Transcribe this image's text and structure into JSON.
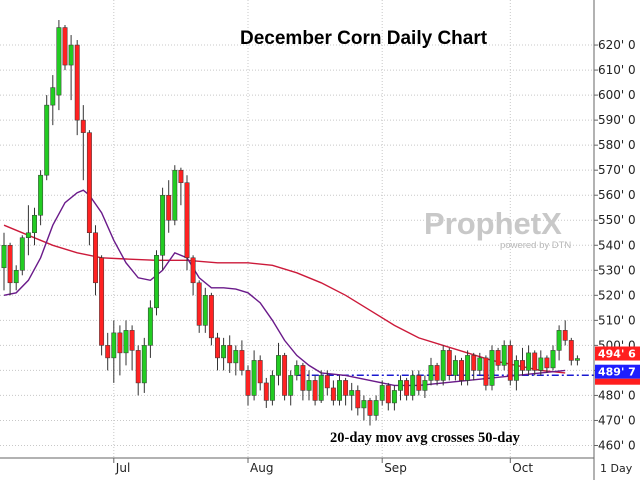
{
  "chart_data": {
    "type": "candlestick",
    "title": "December Corn Daily Chart",
    "annotation": "20-day mov avg crosses 50-day",
    "watermark": {
      "brand": "ProphetX",
      "tagline": "powered by DTN"
    },
    "period": "1 Day",
    "y_ticks": [
      "460' 0",
      "470' 0",
      "480' 0",
      "490' 0",
      "500' 0",
      "510' 0",
      "520' 0",
      "530' 0",
      "540' 0",
      "550' 0",
      "560' 0",
      "570' 0",
      "580' 0",
      "590' 0",
      "600' 0",
      "610' 0",
      "620' 0"
    ],
    "y_tick_values": [
      460,
      470,
      480,
      490,
      500,
      510,
      520,
      530,
      540,
      550,
      560,
      570,
      580,
      590,
      600,
      610,
      620
    ],
    "ylim": [
      455,
      638
    ],
    "x_ticks": [
      {
        "label": "Jul",
        "index": 18
      },
      {
        "label": "Aug",
        "index": 40
      },
      {
        "label": "Sep",
        "index": 62
      },
      {
        "label": "Oct",
        "index": 83
      }
    ],
    "last_price": {
      "label": "494' 6",
      "value": 494.75,
      "color": "#ff1e1e"
    },
    "crossover_level": {
      "label": "489' 7",
      "value": 489.875,
      "color": "#1e1eff"
    },
    "colors": {
      "up": "#22cc22",
      "down": "#ff2222",
      "ma50": "#cc1a3a",
      "ma20": "#6a1a8a",
      "dashed": "#1a1ad0",
      "grid": "#c8c8c8"
    },
    "candles": [
      {
        "o": 531,
        "h": 545,
        "l": 522,
        "c": 540
      },
      {
        "o": 540,
        "h": 541,
        "l": 520,
        "c": 525
      },
      {
        "o": 525,
        "h": 532,
        "l": 522,
        "c": 530
      },
      {
        "o": 530,
        "h": 544,
        "l": 528,
        "c": 543
      },
      {
        "o": 543,
        "h": 556,
        "l": 536,
        "c": 545
      },
      {
        "o": 545,
        "h": 555,
        "l": 540,
        "c": 552
      },
      {
        "o": 552,
        "h": 570,
        "l": 548,
        "c": 568
      },
      {
        "o": 568,
        "h": 600,
        "l": 566,
        "c": 596
      },
      {
        "o": 596,
        "h": 608,
        "l": 588,
        "c": 603
      },
      {
        "o": 600,
        "h": 630,
        "l": 594,
        "c": 627
      },
      {
        "o": 627,
        "h": 628,
        "l": 610,
        "c": 612
      },
      {
        "o": 612,
        "h": 624,
        "l": 598,
        "c": 620
      },
      {
        "o": 620,
        "h": 622,
        "l": 584,
        "c": 590
      },
      {
        "o": 590,
        "h": 596,
        "l": 566,
        "c": 585
      },
      {
        "o": 585,
        "h": 586,
        "l": 540,
        "c": 545
      },
      {
        "o": 545,
        "h": 548,
        "l": 520,
        "c": 525
      },
      {
        "o": 535,
        "h": 536,
        "l": 496,
        "c": 500
      },
      {
        "o": 500,
        "h": 505,
        "l": 490,
        "c": 495
      },
      {
        "o": 495,
        "h": 510,
        "l": 485,
        "c": 505
      },
      {
        "o": 505,
        "h": 508,
        "l": 488,
        "c": 497
      },
      {
        "o": 497,
        "h": 510,
        "l": 492,
        "c": 506
      },
      {
        "o": 506,
        "h": 508,
        "l": 490,
        "c": 498
      },
      {
        "o": 498,
        "h": 500,
        "l": 480,
        "c": 485
      },
      {
        "o": 485,
        "h": 503,
        "l": 481,
        "c": 500
      },
      {
        "o": 500,
        "h": 518,
        "l": 495,
        "c": 515
      },
      {
        "o": 515,
        "h": 538,
        "l": 512,
        "c": 536
      },
      {
        "o": 536,
        "h": 563,
        "l": 530,
        "c": 560
      },
      {
        "o": 560,
        "h": 566,
        "l": 545,
        "c": 550
      },
      {
        "o": 550,
        "h": 572,
        "l": 548,
        "c": 570
      },
      {
        "o": 570,
        "h": 571,
        "l": 556,
        "c": 565
      },
      {
        "o": 565,
        "h": 568,
        "l": 530,
        "c": 535
      },
      {
        "o": 535,
        "h": 536,
        "l": 520,
        "c": 525
      },
      {
        "o": 525,
        "h": 526,
        "l": 505,
        "c": 508
      },
      {
        "o": 508,
        "h": 523,
        "l": 505,
        "c": 520
      },
      {
        "o": 520,
        "h": 521,
        "l": 500,
        "c": 503
      },
      {
        "o": 503,
        "h": 505,
        "l": 490,
        "c": 495
      },
      {
        "o": 495,
        "h": 503,
        "l": 490,
        "c": 500
      },
      {
        "o": 500,
        "h": 504,
        "l": 489,
        "c": 493
      },
      {
        "o": 493,
        "h": 500,
        "l": 488,
        "c": 498
      },
      {
        "o": 498,
        "h": 502,
        "l": 488,
        "c": 490
      },
      {
        "o": 490,
        "h": 492,
        "l": 476,
        "c": 480
      },
      {
        "o": 480,
        "h": 498,
        "l": 478,
        "c": 494
      },
      {
        "o": 494,
        "h": 496,
        "l": 482,
        "c": 485
      },
      {
        "o": 485,
        "h": 487,
        "l": 475,
        "c": 478
      },
      {
        "o": 478,
        "h": 490,
        "l": 476,
        "c": 488
      },
      {
        "o": 488,
        "h": 501,
        "l": 484,
        "c": 496
      },
      {
        "o": 496,
        "h": 497,
        "l": 478,
        "c": 480
      },
      {
        "o": 480,
        "h": 490,
        "l": 476,
        "c": 488
      },
      {
        "o": 488,
        "h": 494,
        "l": 486,
        "c": 492
      },
      {
        "o": 492,
        "h": 493,
        "l": 478,
        "c": 482
      },
      {
        "o": 482,
        "h": 490,
        "l": 478,
        "c": 486
      },
      {
        "o": 486,
        "h": 488,
        "l": 476,
        "c": 478
      },
      {
        "o": 478,
        "h": 490,
        "l": 477,
        "c": 488
      },
      {
        "o": 488,
        "h": 490,
        "l": 480,
        "c": 483
      },
      {
        "o": 483,
        "h": 486,
        "l": 476,
        "c": 478
      },
      {
        "o": 478,
        "h": 488,
        "l": 476,
        "c": 486
      },
      {
        "o": 486,
        "h": 487,
        "l": 476,
        "c": 480
      },
      {
        "o": 480,
        "h": 485,
        "l": 474,
        "c": 482
      },
      {
        "o": 482,
        "h": 484,
        "l": 472,
        "c": 475
      },
      {
        "o": 475,
        "h": 480,
        "l": 470,
        "c": 478
      },
      {
        "o": 478,
        "h": 479,
        "l": 468,
        "c": 472
      },
      {
        "o": 472,
        "h": 480,
        "l": 470,
        "c": 478
      },
      {
        "o": 478,
        "h": 486,
        "l": 476,
        "c": 484
      },
      {
        "o": 484,
        "h": 485,
        "l": 474,
        "c": 477
      },
      {
        "o": 477,
        "h": 484,
        "l": 474,
        "c": 482
      },
      {
        "o": 482,
        "h": 488,
        "l": 478,
        "c": 486
      },
      {
        "o": 486,
        "h": 487,
        "l": 478,
        "c": 480
      },
      {
        "o": 480,
        "h": 490,
        "l": 478,
        "c": 488
      },
      {
        "o": 488,
        "h": 490,
        "l": 480,
        "c": 482
      },
      {
        "o": 482,
        "h": 488,
        "l": 479,
        "c": 486
      },
      {
        "o": 486,
        "h": 495,
        "l": 484,
        "c": 492
      },
      {
        "o": 492,
        "h": 493,
        "l": 484,
        "c": 486
      },
      {
        "o": 486,
        "h": 500,
        "l": 484,
        "c": 498
      },
      {
        "o": 498,
        "h": 499,
        "l": 486,
        "c": 488
      },
      {
        "o": 488,
        "h": 496,
        "l": 486,
        "c": 494
      },
      {
        "o": 494,
        "h": 495,
        "l": 484,
        "c": 486
      },
      {
        "o": 486,
        "h": 498,
        "l": 484,
        "c": 496
      },
      {
        "o": 496,
        "h": 497,
        "l": 486,
        "c": 490
      },
      {
        "o": 490,
        "h": 497,
        "l": 488,
        "c": 495
      },
      {
        "o": 495,
        "h": 496,
        "l": 482,
        "c": 484
      },
      {
        "o": 484,
        "h": 500,
        "l": 482,
        "c": 498
      },
      {
        "o": 498,
        "h": 499,
        "l": 490,
        "c": 492
      },
      {
        "o": 492,
        "h": 502,
        "l": 490,
        "c": 500
      },
      {
        "o": 500,
        "h": 502,
        "l": 484,
        "c": 486
      },
      {
        "o": 486,
        "h": 496,
        "l": 482,
        "c": 494
      },
      {
        "o": 494,
        "h": 499,
        "l": 488,
        "c": 490
      },
      {
        "o": 490,
        "h": 500,
        "l": 488,
        "c": 497
      },
      {
        "o": 497,
        "h": 498,
        "l": 488,
        "c": 490
      },
      {
        "o": 490,
        "h": 498,
        "l": 488,
        "c": 495
      },
      {
        "o": 495,
        "h": 496,
        "l": 489,
        "c": 491
      },
      {
        "o": 491,
        "h": 500,
        "l": 490,
        "c": 498
      },
      {
        "o": 498,
        "h": 508,
        "l": 494,
        "c": 506
      },
      {
        "o": 506,
        "h": 510,
        "l": 500,
        "c": 502
      },
      {
        "o": 502,
        "h": 503,
        "l": 492,
        "c": 494
      },
      {
        "o": 494,
        "h": 496,
        "l": 492,
        "c": 494.75
      }
    ],
    "ma50": [
      [
        0,
        548
      ],
      [
        4,
        544
      ],
      [
        8,
        540
      ],
      [
        12,
        537
      ],
      [
        16,
        535
      ],
      [
        20,
        534.5
      ],
      [
        25,
        534
      ],
      [
        30,
        534
      ],
      [
        35,
        533
      ],
      [
        40,
        533
      ],
      [
        44,
        532
      ],
      [
        48,
        529
      ],
      [
        52,
        525
      ],
      [
        56,
        520
      ],
      [
        60,
        514
      ],
      [
        64,
        508
      ],
      [
        68,
        503
      ],
      [
        72,
        500
      ],
      [
        76,
        497
      ],
      [
        80,
        494
      ],
      [
        84,
        492
      ],
      [
        88,
        490
      ],
      [
        92,
        489
      ]
    ],
    "ma20": [
      [
        0,
        520
      ],
      [
        2,
        521
      ],
      [
        4,
        526
      ],
      [
        6,
        535
      ],
      [
        8,
        548
      ],
      [
        10,
        557
      ],
      [
        12,
        561
      ],
      [
        13,
        562
      ],
      [
        14,
        560
      ],
      [
        16,
        553
      ],
      [
        18,
        542
      ],
      [
        20,
        533
      ],
      [
        22,
        527
      ],
      [
        24,
        526
      ],
      [
        26,
        530
      ],
      [
        28,
        537
      ],
      [
        30,
        535
      ],
      [
        32,
        527
      ],
      [
        34,
        523
      ],
      [
        36,
        523
      ],
      [
        38,
        522.5
      ],
      [
        40,
        521
      ],
      [
        42,
        517
      ],
      [
        44,
        510
      ],
      [
        46,
        502
      ],
      [
        48,
        496
      ],
      [
        50,
        492
      ],
      [
        52,
        489
      ],
      [
        56,
        488
      ],
      [
        60,
        486
      ],
      [
        64,
        484
      ],
      [
        68,
        484
      ],
      [
        72,
        485
      ],
      [
        76,
        486
      ],
      [
        80,
        487
      ],
      [
        84,
        488
      ],
      [
        88,
        489
      ],
      [
        92,
        490
      ]
    ]
  }
}
